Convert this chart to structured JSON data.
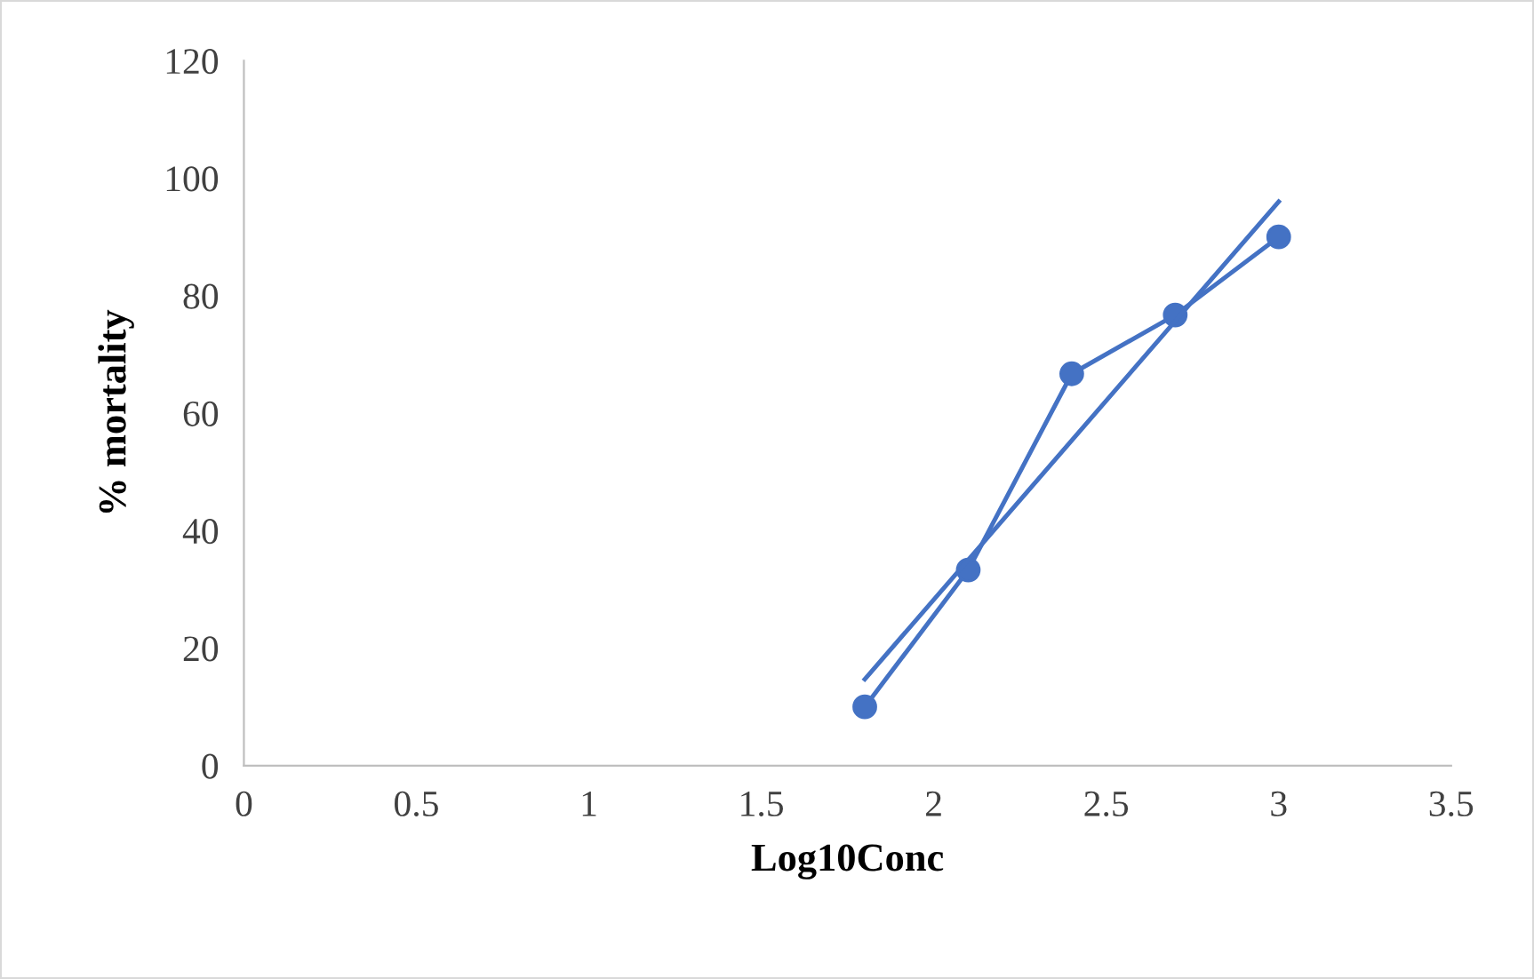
{
  "chart_data": {
    "type": "line",
    "xlabel": "Log10Conc",
    "ylabel": "% mortality",
    "series": [
      {
        "color": "#4472c4",
        "marker": "circle",
        "x": [
          1.8,
          2.1,
          2.4,
          2.7,
          3.0
        ],
        "values": [
          10,
          33.3,
          66.7,
          76.7,
          90
        ]
      },
      {
        "color": "#4472c4",
        "marker": "none",
        "x": [
          1.8,
          3.0
        ],
        "values": [
          14.7,
          96.0
        ]
      }
    ],
    "xlim": [
      0,
      3.5
    ],
    "xticks": [
      0,
      0.5,
      1,
      1.5,
      2,
      2.5,
      3,
      3.5
    ],
    "ylim": [
      0,
      120
    ],
    "yticks": [
      0,
      20,
      40,
      60,
      80,
      100,
      120
    ],
    "grid": false,
    "legend": false,
    "line_style": "solid"
  }
}
